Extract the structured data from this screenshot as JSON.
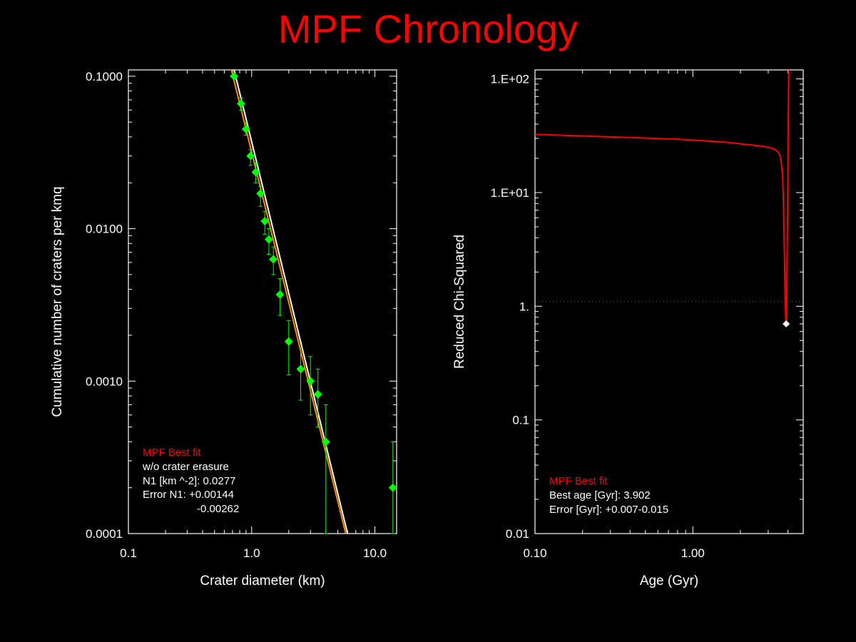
{
  "page": {
    "title": "MPF Chronology"
  },
  "colors": {
    "title": "#ff0000",
    "data": "#00ff00",
    "fit_white": "#ffffff",
    "fit_orange": "#ff8c00",
    "curve": "#ff0000",
    "marker": "#ffffff",
    "axes": "#ffffff"
  },
  "chart_data": [
    {
      "type": "scatter",
      "name": "crater-size-frequency",
      "xlabel": "Crater diameter (km)",
      "ylabel": "Cumulative number of craters per kmq",
      "xscale": "log",
      "yscale": "log",
      "xlim": [
        0.1,
        15
      ],
      "ylim": [
        0.0001,
        0.11
      ],
      "x_ticks": [
        {
          "value": 0.1,
          "label": "0.1"
        },
        {
          "value": 1,
          "label": "1.0"
        },
        {
          "value": 10,
          "label": "10.0"
        }
      ],
      "y_ticks": [
        {
          "value": 0.0001,
          "label": "0.0001"
        },
        {
          "value": 0.001,
          "label": "0.0010"
        },
        {
          "value": 0.01,
          "label": "0.0100"
        },
        {
          "value": 0.1,
          "label": "0.1000"
        }
      ],
      "points": [
        {
          "x": 0.72,
          "y": 0.1,
          "err_lo": 0.1,
          "err_hi": 0.1
        },
        {
          "x": 0.82,
          "y": 0.066,
          "err_lo": 0.06,
          "err_hi": 0.072
        },
        {
          "x": 0.9,
          "y": 0.045,
          "err_lo": 0.041,
          "err_hi": 0.05
        },
        {
          "x": 0.98,
          "y": 0.03,
          "err_lo": 0.026,
          "err_hi": 0.033
        },
        {
          "x": 1.08,
          "y": 0.0235,
          "err_lo": 0.02,
          "err_hi": 0.027
        },
        {
          "x": 1.18,
          "y": 0.017,
          "err_lo": 0.014,
          "err_hi": 0.019
        },
        {
          "x": 1.28,
          "y": 0.0112,
          "err_lo": 0.0092,
          "err_hi": 0.013
        },
        {
          "x": 1.38,
          "y": 0.0085,
          "err_lo": 0.0068,
          "err_hi": 0.01
        },
        {
          "x": 1.5,
          "y": 0.0063,
          "err_lo": 0.005,
          "err_hi": 0.0076
        },
        {
          "x": 1.7,
          "y": 0.0037,
          "err_lo": 0.0027,
          "err_hi": 0.0047
        },
        {
          "x": 2.0,
          "y": 0.00182,
          "err_lo": 0.0011,
          "err_hi": 0.0025
        },
        {
          "x": 2.5,
          "y": 0.0012,
          "err_lo": 0.00075,
          "err_hi": 0.00165
        },
        {
          "x": 3.0,
          "y": 0.001,
          "err_lo": 0.0006,
          "err_hi": 0.00145
        },
        {
          "x": 3.45,
          "y": 0.00082,
          "err_lo": 0.0005,
          "err_hi": 0.0012
        },
        {
          "x": 4.0,
          "y": 0.0004,
          "err_lo": 0.0001,
          "err_hi": 0.0007
        },
        {
          "x": 14.0,
          "y": 0.0002,
          "err_lo": 0.0001,
          "err_hi": 0.0004
        }
      ],
      "fit_lines": [
        {
          "color": "white",
          "x": [
            0.72,
            6.0
          ],
          "y": [
            0.11,
            0.0001
          ]
        },
        {
          "color": "orange",
          "x": [
            0.685,
            5.8
          ],
          "y": [
            0.11,
            0.0001
          ]
        }
      ],
      "annotations": {
        "label": "MPF Best fit",
        "lines": [
          "w/o crater erasure",
          "N1 [km ^-2]: 0.0277",
          "Error N1: +0.00144",
          "-0.00262"
        ]
      }
    },
    {
      "type": "line",
      "name": "reduced-chi-squared",
      "xlabel": "Age (Gyr)",
      "ylabel": "Reduced Chi-Squared",
      "xscale": "log",
      "yscale": "log",
      "xlim": [
        0.1,
        5.0
      ],
      "ylim": [
        0.01,
        120
      ],
      "x_ticks": [
        {
          "value": 0.1,
          "label": "0.10"
        },
        {
          "value": 1.0,
          "label": "1.00"
        }
      ],
      "y_ticks": [
        {
          "value": 0.01,
          "label": "0.01"
        },
        {
          "value": 0.1,
          "label": "0.1"
        },
        {
          "value": 1,
          "label": "1."
        },
        {
          "value": 10,
          "label": "1.E+01"
        },
        {
          "value": 100,
          "label": "1.E+02"
        }
      ],
      "reference_line": {
        "y": 1.1,
        "style": "dotted"
      },
      "series": [
        {
          "x": [
            0.1,
            0.2,
            0.4,
            0.8,
            1.5,
            2.2,
            2.8,
            3.2,
            3.4,
            3.55,
            3.62,
            3.7,
            3.75,
            3.8,
            3.84,
            3.88,
            3.9,
            3.92,
            3.95,
            3.99,
            4.02,
            4.05
          ],
          "y": [
            32.5,
            31.5,
            30.5,
            29.5,
            28.0,
            26.5,
            25.5,
            24.5,
            23.5,
            21.5,
            19.0,
            14.0,
            8.0,
            3.0,
            1.2,
            0.75,
            0.7,
            0.75,
            2.0,
            10.0,
            40.0,
            120.0
          ]
        }
      ],
      "best_point": {
        "x": 3.902,
        "y": 0.7
      },
      "annotations": {
        "label": "MPF Best fit",
        "lines": [
          "Best age [Gyr]: 3.902",
          "Error [Gyr]: +0.007-0.015"
        ]
      }
    }
  ]
}
